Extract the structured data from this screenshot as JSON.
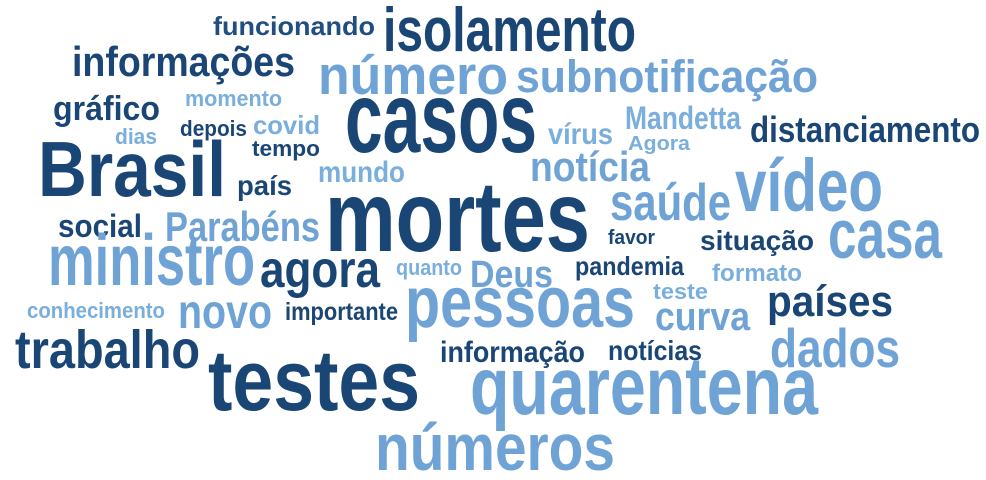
{
  "words": [
    {
      "text": "funcionando",
      "color": "#1f4e7f"
    },
    {
      "text": "isolamento",
      "color": "#1a4676"
    },
    {
      "text": "informações",
      "color": "#1a4676"
    },
    {
      "text": "número",
      "color": "#6fa3d6"
    },
    {
      "text": "subnotificação",
      "color": "#6fa3d6"
    },
    {
      "text": "gráfico",
      "color": "#1a4676"
    },
    {
      "text": "momento",
      "color": "#7aaedc"
    },
    {
      "text": "casos",
      "color": "#1a4676"
    },
    {
      "text": "vírus",
      "color": "#7aaedc"
    },
    {
      "text": "Mandetta",
      "color": "#7aaedc"
    },
    {
      "text": "distanciamento",
      "color": "#1a4676"
    },
    {
      "text": "dias",
      "color": "#7aaedc"
    },
    {
      "text": "depois",
      "color": "#1a4676"
    },
    {
      "text": "covid",
      "color": "#7aaedc"
    },
    {
      "text": "tempo",
      "color": "#1a4676"
    },
    {
      "text": "Agora",
      "color": "#7aaedc"
    },
    {
      "text": "Brasil",
      "color": "#1a4676"
    },
    {
      "text": "mundo",
      "color": "#7aaedc"
    },
    {
      "text": "notícia",
      "color": "#6fa3d6"
    },
    {
      "text": "vídeo",
      "color": "#6fa3d6"
    },
    {
      "text": "país",
      "color": "#1a4676"
    },
    {
      "text": "mortes",
      "color": "#1a4676"
    },
    {
      "text": "saúde",
      "color": "#6fa3d6"
    },
    {
      "text": "social",
      "color": "#1a4676"
    },
    {
      "text": "Parabéns",
      "color": "#6fa3d6"
    },
    {
      "text": "casa",
      "color": "#6fa3d6"
    },
    {
      "text": "favor",
      "color": "#1a4676"
    },
    {
      "text": "situação",
      "color": "#1a4676"
    },
    {
      "text": "ministro",
      "color": "#6fa3d6"
    },
    {
      "text": "agora",
      "color": "#1a4676"
    },
    {
      "text": "quanto",
      "color": "#7aaedc"
    },
    {
      "text": "Deus",
      "color": "#6fa3d6"
    },
    {
      "text": "pandemia",
      "color": "#1a4676"
    },
    {
      "text": "formato",
      "color": "#7aaedc"
    },
    {
      "text": "conhecimento",
      "color": "#7aaedc"
    },
    {
      "text": "novo",
      "color": "#6fa3d6"
    },
    {
      "text": "importante",
      "color": "#1a4676"
    },
    {
      "text": "pessoas",
      "color": "#6fa3d6"
    },
    {
      "text": "teste",
      "color": "#7aaedc"
    },
    {
      "text": "países",
      "color": "#1a4676"
    },
    {
      "text": "curva",
      "color": "#6fa3d6"
    },
    {
      "text": "trabalho",
      "color": "#1a4676"
    },
    {
      "text": "dados",
      "color": "#6fa3d6"
    },
    {
      "text": "informação",
      "color": "#1a4676"
    },
    {
      "text": "notícias",
      "color": "#1a4676"
    },
    {
      "text": "testes",
      "color": "#1a4676"
    },
    {
      "text": "quarentena",
      "color": "#6fa3d6"
    },
    {
      "text": "números",
      "color": "#6fa3d6"
    }
  ]
}
